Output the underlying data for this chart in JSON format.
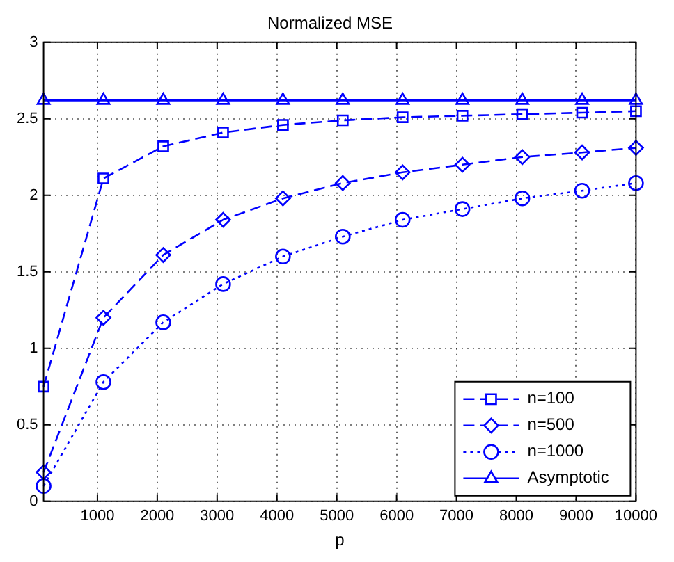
{
  "chart_data": {
    "type": "line",
    "title": "Normalized MSE",
    "xlabel": "p",
    "x": [
      100,
      1100,
      2100,
      3100,
      4100,
      5100,
      6100,
      7100,
      8100,
      9100,
      10000
    ],
    "series": [
      {
        "name": "n=100",
        "color": "#0000ff",
        "marker": "square",
        "line_style": "dashed",
        "values": [
          0.75,
          2.11,
          2.32,
          2.41,
          2.46,
          2.49,
          2.51,
          2.52,
          2.53,
          2.54,
          2.55
        ]
      },
      {
        "name": "n=500",
        "color": "#0000ff",
        "marker": "diamond",
        "line_style": "dashed",
        "values": [
          0.19,
          1.2,
          1.61,
          1.84,
          1.98,
          2.08,
          2.15,
          2.2,
          2.25,
          2.28,
          2.31
        ]
      },
      {
        "name": "n=1000",
        "color": "#0000ff",
        "marker": "circle",
        "line_style": "dotted",
        "values": [
          0.1,
          0.78,
          1.17,
          1.42,
          1.6,
          1.73,
          1.84,
          1.91,
          1.98,
          2.03,
          2.08
        ]
      },
      {
        "name": "Asymptotic",
        "color": "#0000ff",
        "marker": "triangle",
        "line_style": "solid",
        "values": [
          2.62,
          2.62,
          2.62,
          2.62,
          2.62,
          2.62,
          2.62,
          2.62,
          2.62,
          2.62,
          2.62
        ]
      }
    ],
    "xlim": [
      100,
      10000
    ],
    "xticks": [
      1000,
      2000,
      3000,
      4000,
      5000,
      6000,
      7000,
      8000,
      9000,
      10000
    ],
    "ylim": [
      0,
      3
    ],
    "yticks": [
      0,
      0.5,
      1,
      1.5,
      2,
      2.5,
      3
    ],
    "grid": true,
    "legend": "bottom right"
  }
}
